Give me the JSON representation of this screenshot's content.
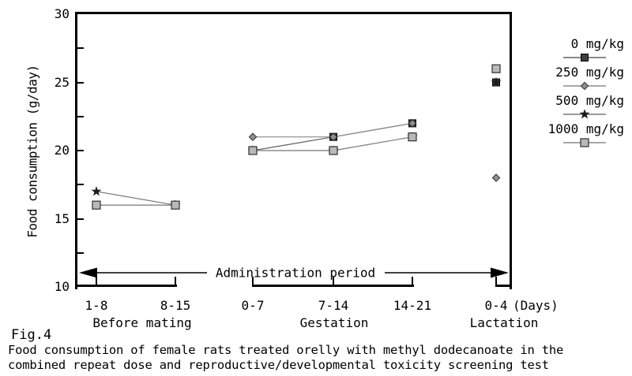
{
  "figure": {
    "fig_label": "Fig.4",
    "caption_line1": "Food consumption of female rats treated orelly with methyl dodecanoate in the",
    "caption_line2": "combined repeat dose and reproductive/developmental toxicity screening test"
  },
  "chart_data": {
    "type": "line",
    "title": "",
    "xlabel": "",
    "ylabel": "Food consumption (g/day)",
    "ylim": [
      10,
      30
    ],
    "y_major_ticks": [
      30,
      25,
      20,
      15,
      10
    ],
    "y_minor_ticks": [
      12.5,
      15,
      17.5,
      20,
      22.5,
      25,
      27.5
    ],
    "grid": false,
    "legend_position": "right",
    "categories": [
      "1-8",
      "8-15",
      "0-7",
      "7-14",
      "14-21",
      "0-4"
    ],
    "x_unit_suffix": "(Days)",
    "groups": [
      {
        "label": "Before mating",
        "indices": [
          0,
          1
        ]
      },
      {
        "label": "Gestation",
        "indices": [
          2,
          3,
          4
        ]
      },
      {
        "label": "Lactation",
        "indices": [
          5
        ]
      }
    ],
    "series": [
      {
        "name": "0 mg/kg",
        "marker": "square-dark",
        "line_color": "#606060",
        "values": [
          16,
          16,
          20,
          21,
          22,
          25
        ]
      },
      {
        "name": "250 mg/kg",
        "marker": "diamond",
        "line_color": "#8a8a8a",
        "values": [
          16,
          16,
          21,
          21,
          22,
          18
        ]
      },
      {
        "name": "500 mg/kg",
        "marker": "star",
        "line_color": "#7a7a7a",
        "values": [
          17,
          16,
          20,
          20,
          21,
          25
        ]
      },
      {
        "name": "1000 mg/kg",
        "marker": "square-light",
        "line_color": "#8a8a8a",
        "values": [
          16,
          16,
          20,
          20,
          21,
          26
        ]
      }
    ],
    "annotation": "Administration period"
  },
  "colors": {
    "frame": "#000000",
    "marker_square_dark": "#3f3f3f",
    "marker_square_light": "#b8b8b8",
    "marker_diamond": "#8f8f8f",
    "marker_diamond_edge": "#2f2f2f",
    "marker_star": "#1d1d1d",
    "marker_edge": "#000000"
  }
}
